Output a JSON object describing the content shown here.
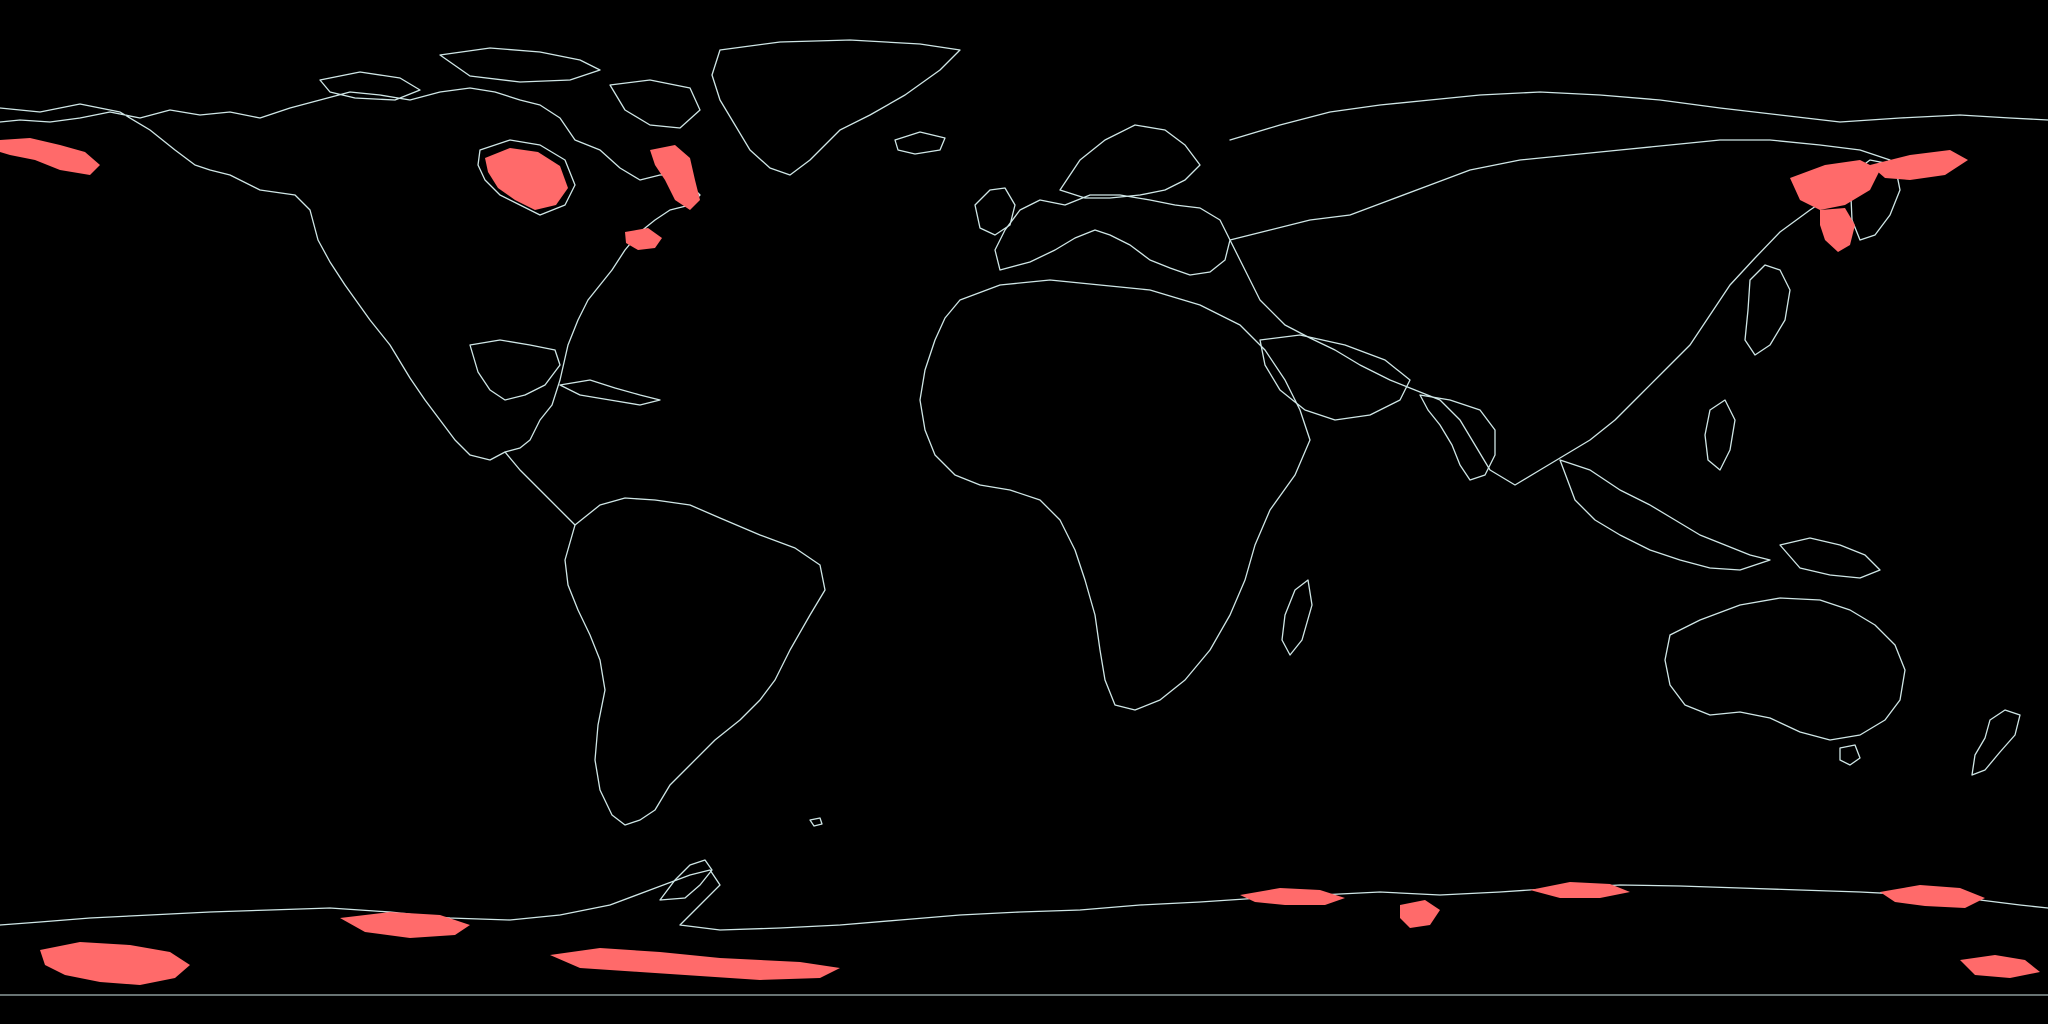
{
  "map": {
    "projection": "equirectangular",
    "background_color": "#000000",
    "coastline_color": "#cfe6e6",
    "highlight_color": "#ff6a6a",
    "highlighted_regions": [
      "bering-strait-alaska",
      "hudson-bay",
      "labrador-coast",
      "gulf-of-st-lawrence",
      "sea-of-okhotsk",
      "east-siberia-coast",
      "sea-of-japan",
      "antarctic-coast-west",
      "antarctic-coast-weddell",
      "antarctic-coast-east"
    ]
  }
}
